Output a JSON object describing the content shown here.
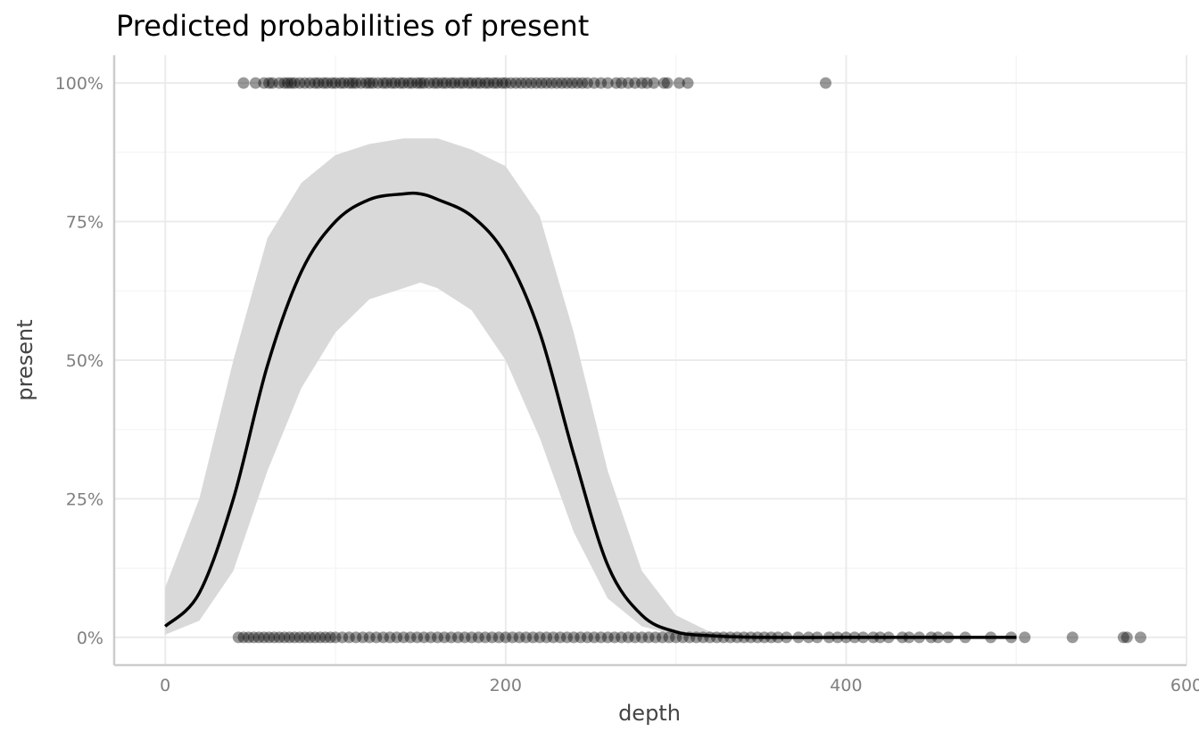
{
  "chart_data": {
    "type": "line",
    "title": "Predicted probabilities of present",
    "xlabel": "depth",
    "ylabel": "present",
    "xlim": [
      -30,
      600
    ],
    "ylim": [
      -0.05,
      1.05
    ],
    "x_ticks": [
      0,
      200,
      400,
      600
    ],
    "x_tick_labels": [
      "0",
      "200",
      "400",
      "600"
    ],
    "y_ticks": [
      0,
      0.25,
      0.5,
      0.75,
      1.0
    ],
    "y_tick_labels": [
      "0%",
      "25%",
      "50%",
      "75%",
      "100%"
    ],
    "grid": true,
    "legend": "none",
    "colors": {
      "line": "#000000",
      "ribbon": "#d9d9d9",
      "points": "#000000",
      "grid_major": "#ebebeb",
      "grid_minor": "#f4f4f4",
      "axis_line": "#cccccc"
    },
    "series": [
      {
        "kind": "line",
        "x": [
          0,
          20,
          40,
          60,
          80,
          100,
          120,
          140,
          150,
          160,
          180,
          200,
          220,
          240,
          260,
          280,
          300,
          320,
          350,
          400,
          450,
          500
        ],
        "y": [
          0.02,
          0.08,
          0.25,
          0.49,
          0.66,
          0.75,
          0.79,
          0.8,
          0.8,
          0.79,
          0.76,
          0.69,
          0.55,
          0.33,
          0.13,
          0.04,
          0.01,
          0.003,
          0.0,
          0.0,
          0.0,
          0.0
        ]
      },
      {
        "kind": "ribbon",
        "x": [
          0,
          20,
          40,
          60,
          80,
          100,
          120,
          140,
          150,
          160,
          180,
          200,
          220,
          240,
          260,
          280,
          300,
          320,
          350
        ],
        "lower": [
          0.005,
          0.03,
          0.12,
          0.3,
          0.45,
          0.55,
          0.61,
          0.63,
          0.64,
          0.63,
          0.59,
          0.5,
          0.36,
          0.19,
          0.07,
          0.02,
          0.004,
          0.001,
          0.0
        ],
        "upper": [
          0.09,
          0.25,
          0.5,
          0.72,
          0.82,
          0.87,
          0.89,
          0.9,
          0.9,
          0.9,
          0.88,
          0.85,
          0.76,
          0.55,
          0.3,
          0.12,
          0.04,
          0.01,
          0.0
        ]
      },
      {
        "kind": "scatter",
        "y": 1,
        "x": [
          46,
          53,
          58,
          61,
          63,
          67,
          70,
          72,
          74,
          76,
          79,
          82,
          85,
          88,
          90,
          93,
          95,
          98,
          100,
          103,
          105,
          108,
          110,
          112,
          115,
          118,
          120,
          122,
          125,
          128,
          130,
          133,
          135,
          138,
          140,
          143,
          145,
          148,
          150,
          152,
          155,
          158,
          160,
          163,
          165,
          168,
          170,
          173,
          175,
          178,
          180,
          183,
          185,
          188,
          190,
          193,
          195,
          198,
          200,
          203,
          206,
          209,
          212,
          215,
          218,
          221,
          224,
          227,
          230,
          233,
          236,
          239,
          242,
          245,
          248,
          252,
          256,
          260,
          265,
          268,
          272,
          276,
          280,
          283,
          287,
          293,
          295,
          302,
          307,
          388
        ]
      },
      {
        "kind": "scatter",
        "y": 0,
        "x": [
          43,
          46,
          49,
          52,
          55,
          58,
          61,
          64,
          67,
          70,
          73,
          76,
          79,
          82,
          85,
          88,
          91,
          94,
          97,
          100,
          104,
          108,
          112,
          116,
          120,
          124,
          128,
          132,
          136,
          140,
          144,
          148,
          152,
          156,
          160,
          164,
          168,
          172,
          176,
          180,
          184,
          188,
          192,
          196,
          200,
          204,
          208,
          212,
          216,
          220,
          224,
          228,
          232,
          236,
          240,
          244,
          248,
          252,
          256,
          260,
          264,
          268,
          272,
          276,
          280,
          284,
          288,
          292,
          296,
          300,
          304,
          308,
          312,
          316,
          320,
          324,
          328,
          332,
          336,
          340,
          344,
          348,
          352,
          356,
          360,
          365,
          372,
          378,
          383,
          390,
          395,
          400,
          405,
          410,
          416,
          420,
          425,
          433,
          437,
          443,
          450,
          454,
          460,
          470,
          485,
          497,
          505,
          533,
          563,
          565,
          573
        ]
      }
    ]
  }
}
